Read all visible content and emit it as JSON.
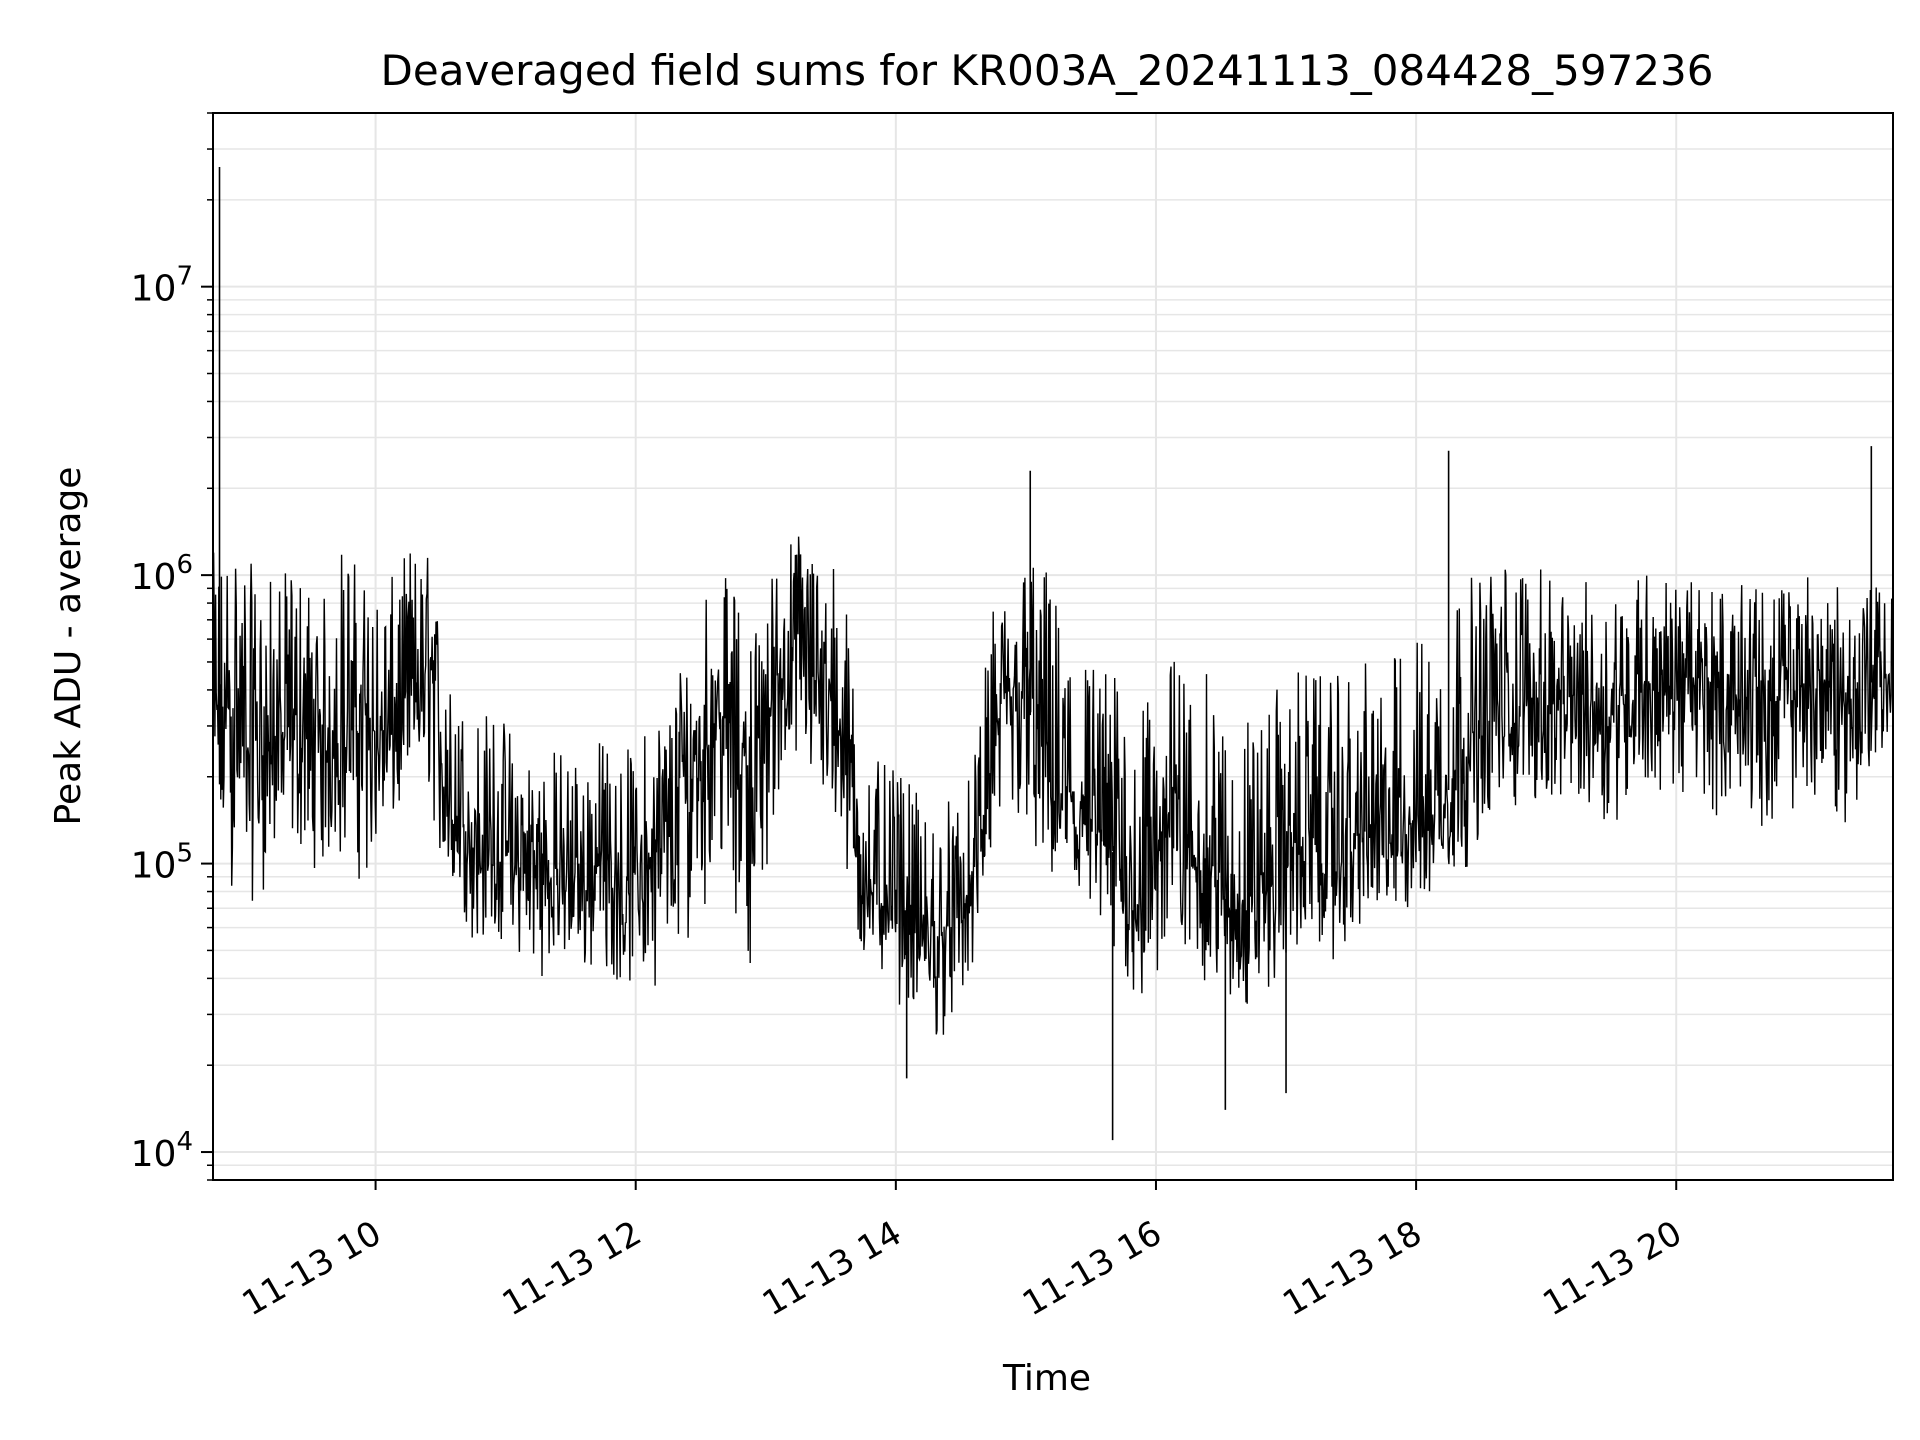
{
  "chart_data": {
    "type": "line",
    "title": "Deaveraged field sums for KR003A_20241113_084428_597236",
    "xlabel": "Time",
    "ylabel": "Peak ADU - average",
    "yscale": "log",
    "ylim": [
      8000,
      40000000
    ],
    "xlim": [
      "2024-11-13 08:45",
      "2024-11-13 21:40"
    ],
    "grid": true,
    "line_color": "#000000",
    "grid_color": "#e6e6e6",
    "x_ticks": [
      {
        "label": "11-13 10",
        "value": "2024-11-13 10:00"
      },
      {
        "label": "11-13 12",
        "value": "2024-11-13 12:00"
      },
      {
        "label": "11-13 14",
        "value": "2024-11-13 14:00"
      },
      {
        "label": "11-13 16",
        "value": "2024-11-13 16:00"
      },
      {
        "label": "11-13 18",
        "value": "2024-11-13 18:00"
      },
      {
        "label": "11-13 20",
        "value": "2024-11-13 20:00"
      }
    ],
    "y_ticks": [
      {
        "base": "10",
        "exp": "4",
        "value": 10000
      },
      {
        "base": "10",
        "exp": "5",
        "value": 100000
      },
      {
        "base": "10",
        "exp": "6",
        "value": 1000000
      },
      {
        "base": "10",
        "exp": "7",
        "value": 10000000
      }
    ],
    "series": [
      {
        "x": [
          "2024-11-13 08:45",
          "2024-11-13 08:55",
          "2024-11-13 09:05",
          "2024-11-13 09:15",
          "2024-11-13 09:25",
          "2024-11-13 09:35",
          "2024-11-13 09:45",
          "2024-11-13 09:55",
          "2024-11-13 10:05",
          "2024-11-13 10:15",
          "2024-11-13 10:25",
          "2024-11-13 10:35",
          "2024-11-13 10:45",
          "2024-11-13 10:55",
          "2024-11-13 11:05",
          "2024-11-13 11:15",
          "2024-11-13 11:25",
          "2024-11-13 11:35",
          "2024-11-13 11:45",
          "2024-11-13 11:55",
          "2024-11-13 12:05",
          "2024-11-13 12:15",
          "2024-11-13 12:25",
          "2024-11-13 12:35",
          "2024-11-13 12:45",
          "2024-11-13 12:55",
          "2024-11-13 13:05",
          "2024-11-13 13:15",
          "2024-11-13 13:25",
          "2024-11-13 13:35",
          "2024-11-13 13:45",
          "2024-11-13 13:55",
          "2024-11-13 14:05",
          "2024-11-13 14:15",
          "2024-11-13 14:25",
          "2024-11-13 14:35",
          "2024-11-13 14:45",
          "2024-11-13 14:55",
          "2024-11-13 15:05",
          "2024-11-13 15:15",
          "2024-11-13 15:25",
          "2024-11-13 15:35",
          "2024-11-13 15:45",
          "2024-11-13 15:55",
          "2024-11-13 16:05",
          "2024-11-13 16:15",
          "2024-11-13 16:25",
          "2024-11-13 16:35",
          "2024-11-13 16:45",
          "2024-11-13 16:55",
          "2024-11-13 17:05",
          "2024-11-13 17:15",
          "2024-11-13 17:25",
          "2024-11-13 17:35",
          "2024-11-13 17:45",
          "2024-11-13 17:55",
          "2024-11-13 18:05",
          "2024-11-13 18:15",
          "2024-11-13 18:25",
          "2024-11-13 18:35",
          "2024-11-13 18:45",
          "2024-11-13 18:55",
          "2024-11-13 19:05",
          "2024-11-13 19:15",
          "2024-11-13 19:25",
          "2024-11-13 19:35",
          "2024-11-13 19:45",
          "2024-11-13 19:55",
          "2024-11-13 20:05",
          "2024-11-13 20:15",
          "2024-11-13 20:25",
          "2024-11-13 20:35",
          "2024-11-13 20:45",
          "2024-11-13 20:55",
          "2024-11-13 21:05",
          "2024-11-13 21:15",
          "2024-11-13 21:25",
          "2024-11-13 21:35"
        ],
        "values": [
          300000,
          350000,
          250000,
          280000,
          300000,
          220000,
          350000,
          320000,
          250000,
          400000,
          450000,
          150000,
          120000,
          110000,
          100000,
          90000,
          95000,
          90000,
          100000,
          85000,
          100000,
          120000,
          200000,
          350000,
          300000,
          200000,
          450000,
          550000,
          450000,
          300000,
          90000,
          80000,
          70000,
          50000,
          60000,
          80000,
          250000,
          400000,
          300000,
          200000,
          150000,
          120000,
          100000,
          80000,
          150000,
          120000,
          90000,
          70000,
          80000,
          90000,
          120000,
          110000,
          100000,
          130000,
          120000,
          140000,
          150000,
          180000,
          250000,
          300000,
          350000,
          380000,
          320000,
          400000,
          350000,
          380000,
          420000,
          450000,
          400000,
          420000,
          380000,
          400000,
          350000,
          400000,
          420000,
          380000,
          400000,
          450000
        ],
        "lower": [
          80000,
          70000,
          70000,
          90000,
          100000,
          90000,
          90000,
          80000,
          100000,
          150000,
          150000,
          60000,
          50000,
          50000,
          45000,
          40000,
          40000,
          38000,
          40000,
          35000,
          35000,
          40000,
          50000,
          80000,
          60000,
          40000,
          150000,
          200000,
          150000,
          80000,
          40000,
          35000,
          30000,
          22000,
          25000,
          35000,
          100000,
          120000,
          80000,
          60000,
          50000,
          45000,
          35000,
          25000,
          40000,
          40000,
          35000,
          25000,
          30000,
          35000,
          45000,
          45000,
          45000,
          55000,
          55000,
          60000,
          60000,
          70000,
          100000,
          120000,
          140000,
          150000,
          130000,
          150000,
          130000,
          140000,
          150000,
          160000,
          140000,
          150000,
          130000,
          140000,
          120000,
          140000,
          150000,
          130000,
          140000,
          200000
        ],
        "upper": [
          1200000,
          1500000,
          1000000,
          1000000,
          1100000,
          800000,
          1400000,
          1000000,
          900000,
          1300000,
          1200000,
          400000,
          350000,
          350000,
          300000,
          250000,
          260000,
          250000,
          280000,
          250000,
          300000,
          400000,
          700000,
          1200000,
          900000,
          700000,
          1200000,
          1500000,
          1300000,
          1100000,
          250000,
          220000,
          200000,
          150000,
          180000,
          200000,
          800000,
          1000000,
          1400000,
          800000,
          600000,
          500000,
          450000,
          350000,
          550000,
          500000,
          450000,
          300000,
          350000,
          400000,
          500000,
          450000,
          450000,
          500000,
          500000,
          600000,
          700000,
          900000,
          1000000,
          1100000,
          1200000,
          1100000,
          900000,
          1000000,
          900000,
          1000000,
          1100000,
          1000000,
          950000,
          1000000,
          900000,
          950000,
          900000,
          1000000,
          1100000,
          900000,
          950000,
          900000
        ]
      }
    ],
    "notable_spikes": [
      {
        "x": "2024-11-13 08:48",
        "value": 26000000
      },
      {
        "x": "2024-11-13 15:02",
        "value": 2300000
      },
      {
        "x": "2024-11-13 18:15",
        "value": 2700000
      },
      {
        "x": "2024-11-13 21:30",
        "value": 2800000
      },
      {
        "x": "2024-11-13 15:40",
        "value": 11000
      },
      {
        "x": "2024-11-13 16:32",
        "value": 14000
      },
      {
        "x": "2024-11-13 17:00",
        "value": 16000
      },
      {
        "x": "2024-11-13 14:05",
        "value": 18000
      }
    ]
  }
}
